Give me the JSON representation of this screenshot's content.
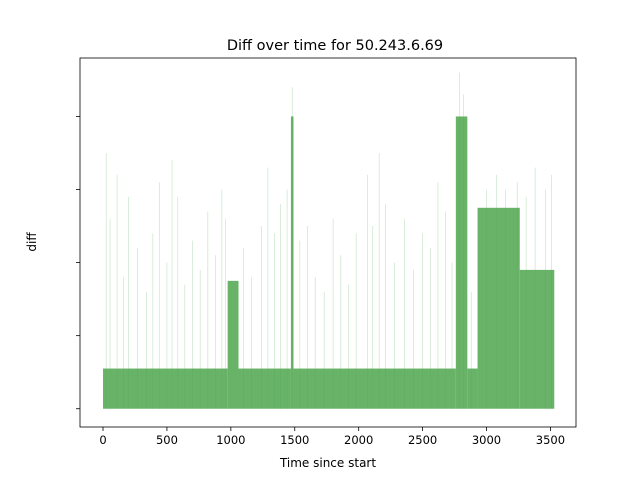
{
  "chart_data": {
    "type": "area",
    "title": "Diff over time for 50.243.6.69",
    "xlabel": "Time since start",
    "ylabel": "diff",
    "xlim": [
      -180,
      3700
    ],
    "ylim": [
      -0.25,
      4.8
    ],
    "x_ticks": [
      0,
      500,
      1000,
      1500,
      2000,
      2500,
      3000,
      3500
    ],
    "y_ticks": [
      0,
      1,
      2,
      3,
      4
    ],
    "y_tick_labels_shown": false,
    "grid": false,
    "color": "#4da64d",
    "series": [
      {
        "name": "",
        "segments": [
          {
            "x_start": 0,
            "x_end": 975,
            "level": 0.55
          },
          {
            "x_start": 975,
            "x_end": 1060,
            "level": 1.75
          },
          {
            "x_start": 1060,
            "x_end": 1470,
            "level": 0.55
          },
          {
            "x_start": 1470,
            "x_end": 1490,
            "level": 4.0
          },
          {
            "x_start": 1490,
            "x_end": 2760,
            "level": 0.55
          },
          {
            "x_start": 2760,
            "x_end": 2850,
            "level": 4.0
          },
          {
            "x_start": 2850,
            "x_end": 2930,
            "level": 0.55
          },
          {
            "x_start": 2930,
            "x_end": 3260,
            "level": 2.75
          },
          {
            "x_start": 3260,
            "x_end": 3530,
            "level": 1.9
          }
        ],
        "spikes": [
          {
            "x": 25,
            "y": 3.5
          },
          {
            "x": 55,
            "y": 2.6
          },
          {
            "x": 110,
            "y": 3.2
          },
          {
            "x": 160,
            "y": 1.8
          },
          {
            "x": 200,
            "y": 2.9
          },
          {
            "x": 270,
            "y": 2.2
          },
          {
            "x": 340,
            "y": 1.6
          },
          {
            "x": 390,
            "y": 2.4
          },
          {
            "x": 440,
            "y": 3.1
          },
          {
            "x": 500,
            "y": 2.0
          },
          {
            "x": 540,
            "y": 3.4
          },
          {
            "x": 585,
            "y": 2.9
          },
          {
            "x": 640,
            "y": 1.7
          },
          {
            "x": 700,
            "y": 2.3
          },
          {
            "x": 760,
            "y": 1.9
          },
          {
            "x": 820,
            "y": 2.7
          },
          {
            "x": 880,
            "y": 2.1
          },
          {
            "x": 930,
            "y": 3.0
          },
          {
            "x": 960,
            "y": 2.6
          },
          {
            "x": 1100,
            "y": 2.2
          },
          {
            "x": 1160,
            "y": 1.8
          },
          {
            "x": 1240,
            "y": 2.5
          },
          {
            "x": 1290,
            "y": 3.3
          },
          {
            "x": 1340,
            "y": 2.4
          },
          {
            "x": 1390,
            "y": 2.8
          },
          {
            "x": 1440,
            "y": 3.0
          },
          {
            "x": 1480,
            "y": 4.4
          },
          {
            "x": 1540,
            "y": 2.3
          },
          {
            "x": 1600,
            "y": 2.5
          },
          {
            "x": 1660,
            "y": 1.8
          },
          {
            "x": 1730,
            "y": 1.6
          },
          {
            "x": 1800,
            "y": 2.6
          },
          {
            "x": 1860,
            "y": 2.1
          },
          {
            "x": 1920,
            "y": 1.7
          },
          {
            "x": 1980,
            "y": 2.4
          },
          {
            "x": 2070,
            "y": 3.2
          },
          {
            "x": 2110,
            "y": 2.5
          },
          {
            "x": 2160,
            "y": 3.5
          },
          {
            "x": 2210,
            "y": 2.8
          },
          {
            "x": 2280,
            "y": 2.0
          },
          {
            "x": 2360,
            "y": 2.6
          },
          {
            "x": 2430,
            "y": 1.9
          },
          {
            "x": 2500,
            "y": 2.4
          },
          {
            "x": 2560,
            "y": 2.2
          },
          {
            "x": 2620,
            "y": 3.1
          },
          {
            "x": 2680,
            "y": 2.7
          },
          {
            "x": 2730,
            "y": 2.0
          },
          {
            "x": 2790,
            "y": 4.6
          },
          {
            "x": 2820,
            "y": 4.3
          },
          {
            "x": 2880,
            "y": 1.6
          },
          {
            "x": 3000,
            "y": 3.0
          },
          {
            "x": 3080,
            "y": 3.2
          },
          {
            "x": 3150,
            "y": 3.0
          },
          {
            "x": 3240,
            "y": 3.1
          },
          {
            "x": 3310,
            "y": 2.9
          },
          {
            "x": 3380,
            "y": 3.3
          },
          {
            "x": 3460,
            "y": 3.0
          },
          {
            "x": 3510,
            "y": 3.2
          }
        ]
      }
    ]
  }
}
